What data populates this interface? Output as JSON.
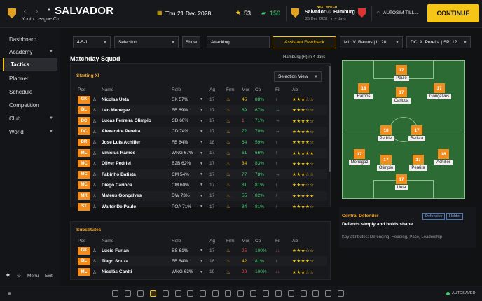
{
  "header": {
    "club_name": "SALVADOR",
    "club_sub": "Youth League C",
    "date": "Thu 21 Dec 2028",
    "stat_a": "53",
    "stat_b": "150",
    "next_label": "NEXT MATCH",
    "home": "Salvador",
    "vs": "vs",
    "away": "Hamburg",
    "match_info": "25 Dec 2028 | in 4 days",
    "autosim": "AUTOSIM TILL...",
    "continue": "CONTINUE"
  },
  "sidebar": {
    "items": [
      {
        "label": "Dashboard"
      },
      {
        "label": "Academy"
      },
      {
        "label": "Tactics"
      },
      {
        "label": "Planner"
      },
      {
        "label": "Schedule"
      },
      {
        "label": "Competition"
      },
      {
        "label": "Club"
      },
      {
        "label": "World"
      }
    ],
    "menu": "Menu",
    "exit": "Exit"
  },
  "toolbar": {
    "formation": "4-5-1",
    "selection": "Selection",
    "show": "Show",
    "mentality": "Attacking",
    "assistant": "Assistant Feedback",
    "ml": "ML: V. Ramos | L: 20",
    "dc": "DC: A. Pereira | SP: 12"
  },
  "squad": {
    "title": "Matchday Squad",
    "opponent": "Hamburg (H) in 4 days",
    "starting_xi": "Starting XI",
    "selection_view": "Selection View",
    "substitutes": "Substitutes",
    "headers": {
      "pos": "Pos",
      "name": "Name",
      "role": "Role",
      "ag": "Ag",
      "frm": "Frm",
      "mor": "Mor",
      "co": "Co",
      "fit": "Fit",
      "abl": "Abl"
    },
    "starters": [
      {
        "pos": "GK",
        "name": "Nicolas Ueta",
        "role": "SK 57%",
        "ag": "17",
        "mor": "45",
        "co": "88%",
        "fit": "↑",
        "abl": "★★★☆☆"
      },
      {
        "pos": "DL",
        "name": "Léo Menegaz",
        "role": "FB 69%",
        "ag": "17",
        "mor": "89",
        "co": "67%",
        "fit": "→",
        "abl": "★★★☆☆"
      },
      {
        "pos": "DC",
        "name": "Lucas Ferreira Olimpio",
        "role": "CD 60%",
        "ag": "17",
        "mor": "1",
        "co": "71%",
        "fit": "→",
        "abl": "★★★★☆"
      },
      {
        "pos": "DC",
        "name": "Alexandre Pereira",
        "role": "CD 74%",
        "ag": "17",
        "mor": "72",
        "co": "70%",
        "fit": "→",
        "abl": "★★★★☆"
      },
      {
        "pos": "DR",
        "name": "José Luis Achilier",
        "role": "FB 64%",
        "ag": "18",
        "mor": "64",
        "co": "59%",
        "fit": "↑",
        "abl": "★★★★☆"
      },
      {
        "pos": "ML",
        "name": "Vinícius Ramos",
        "role": "WNG 67%",
        "ag": "17",
        "mor": "61",
        "co": "66%",
        "fit": "↑",
        "abl": "★★★★★"
      },
      {
        "pos": "MC",
        "name": "Oliver Pedriel",
        "role": "B2B 62%",
        "ag": "17",
        "mor": "34",
        "co": "83%",
        "fit": "↑",
        "abl": "★★★★☆"
      },
      {
        "pos": "MC",
        "name": "Fabinho Batista",
        "role": "CM 54%",
        "ag": "17",
        "mor": "77",
        "co": "78%",
        "fit": "→",
        "abl": "★★★☆☆"
      },
      {
        "pos": "MC",
        "name": "Diego Carioca",
        "role": "CM 60%",
        "ag": "17",
        "mor": "81",
        "co": "81%",
        "fit": "↑",
        "abl": "★★★☆☆"
      },
      {
        "pos": "MR",
        "name": "Mateus Gonçalves",
        "role": "DW 73%",
        "ag": "17",
        "mor": "55",
        "co": "82%",
        "fit": "↑",
        "abl": "★★★★★"
      },
      {
        "pos": "ST",
        "name": "Walter De Paulo",
        "role": "POA 71%",
        "ag": "17",
        "mor": "84",
        "co": "81%",
        "fit": "↑",
        "abl": "★★★★☆"
      }
    ],
    "subs": [
      {
        "pos": "GK",
        "name": "Lúcio Furlan",
        "role": "SS 61%",
        "ag": "17",
        "mor": "25",
        "co": "100%",
        "fit": "↓↓",
        "abl": "★★★☆☆"
      },
      {
        "pos": "DL",
        "name": "Tiago Souza",
        "role": "FB 64%",
        "ag": "18",
        "mor": "42",
        "co": "81%",
        "fit": "↑",
        "abl": "★★★★☆"
      },
      {
        "pos": "ML",
        "name": "Nicolás Cantti",
        "role": "WNG 63%",
        "ag": "19",
        "mor": "29",
        "co": "100%",
        "fit": "↓↓",
        "abl": "★★★☆☆"
      }
    ]
  },
  "pitch": {
    "players": [
      {
        "n": "17",
        "name": "Paulo"
      },
      {
        "n": "18",
        "name": "Ramos"
      },
      {
        "n": "17",
        "name": "Carioca"
      },
      {
        "n": "17",
        "name": "Gonçalves"
      },
      {
        "n": "18",
        "name": "Pedriel"
      },
      {
        "n": "17",
        "name": "Batista"
      },
      {
        "n": "17",
        "name": "Menegaz"
      },
      {
        "n": "17",
        "name": "Olimpio"
      },
      {
        "n": "17",
        "name": "Pereira"
      },
      {
        "n": "18",
        "name": "Achilier"
      },
      {
        "n": "17",
        "name": "Ueta"
      }
    ]
  },
  "role_info": {
    "role": "Central Defender",
    "tag1": "Defensive",
    "tag2": "Holder",
    "desc": "Defends simply and holds shape.",
    "attrs": "Key attributes: Defending, Heading, Pace, Leadership"
  },
  "footer": {
    "autosaved": "AUTOSAVED"
  }
}
